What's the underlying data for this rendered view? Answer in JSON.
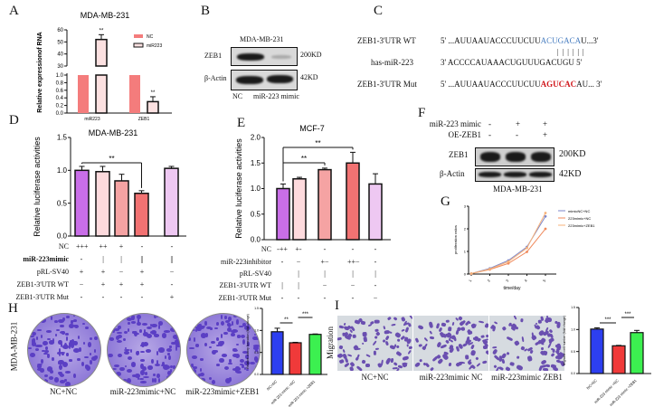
{
  "panels": {
    "A": "A",
    "B": "B",
    "C": "C",
    "D": "D",
    "E": "E",
    "F": "F",
    "G": "G",
    "H": "H",
    "I": "I"
  },
  "blot_b": {
    "title": "MDA-MB-231",
    "rows": [
      "ZEB1",
      "β-Actin"
    ],
    "sizes": [
      "200KD",
      "42KD"
    ],
    "lanes": [
      "NC",
      "miR-223 mimic"
    ]
  },
  "seq_c": {
    "rows": [
      {
        "name": "ZEB1-3'UTR WT",
        "end5": "5'",
        "pre": "...AUUAAUACCCUUCUU",
        "hl": "ACUGACA",
        "post": "U...3'",
        "hl_color": "#4a7fc1",
        "bold": false
      },
      {
        "name": "has-miR-223",
        "end5": "3'",
        "pre": "ACCCCAUAAACUGUUUGACUGU",
        "hl": "",
        "post": "5'",
        "hl_color": "#111111",
        "bold": false
      },
      {
        "name": "ZEB1-3'UTR Mut",
        "end5": "5'",
        "pre": "...AUUAAUACCCUUCUU",
        "hl": "AGUCAC",
        "post": "AU... 3'",
        "hl_color": "#d0161b",
        "bold": true
      }
    ],
    "pairing": "| |  | |   | |"
  },
  "blot_f": {
    "conditions": [
      {
        "label": "miR-223 mimic",
        "values": [
          "-",
          "+",
          "+"
        ]
      },
      {
        "label": "OE-ZEB1",
        "values": [
          "-",
          "-",
          "+"
        ]
      }
    ],
    "rows": [
      "ZEB1",
      "β-Actin"
    ],
    "sizes": [
      "200KD",
      "42KD"
    ],
    "caption": "MDA-MB-231"
  },
  "table_d": [
    {
      "label": "NC",
      "values": [
        "+++",
        "++",
        "+",
        "-",
        "-"
      ]
    },
    {
      "label": "miR-223mimic",
      "values": [
        "-",
        "|",
        "|",
        "||",
        "||"
      ]
    },
    {
      "label": "pRL-SV40",
      "values": [
        "+",
        "+",
        "−",
        "+",
        "−"
      ]
    },
    {
      "label": "ZEB1-3'UTR WT",
      "values": [
        "−",
        "+",
        "+",
        "+",
        "-"
      ]
    },
    {
      "label": "ZEB1-3'UTR Mut",
      "values": [
        "-",
        "-",
        "-",
        "-",
        "+"
      ]
    }
  ],
  "table_e": [
    {
      "label": "NC",
      "values": [
        "-++",
        "+-",
        "-",
        "-",
        "-"
      ]
    },
    {
      "label": "miR-223inhibitor",
      "values": [
        "-",
        "−",
        "+−",
        "++−",
        "-"
      ]
    },
    {
      "label": "pRL-SV40",
      "values": [
        "",
        "|",
        "|",
        "|",
        "|"
      ]
    },
    {
      "label": "ZEB1-3'UTR WT",
      "values": [
        "|",
        "|",
        "−",
        "−",
        "-"
      ]
    },
    {
      "label": "ZEB1-3'UTR Mut",
      "values": [
        "-",
        "-",
        "-",
        "-",
        "−"
      ]
    }
  ],
  "images_h": {
    "row_label": "MDA-MB-231",
    "captions": [
      "NC+NC",
      "miR-223mimic+NC",
      "miR-223mimic+ZEB1"
    ],
    "stain": "#5b3fc4"
  },
  "images_i": {
    "row_label": "Migration",
    "captions": [
      "NC+NC",
      "miR-223mimic  NC",
      "miR-223mimic  ZEB1"
    ],
    "stain": "#6a4fb0"
  },
  "chart_data": [
    {
      "id": "A",
      "type": "bar",
      "title": "MDA-MB-231",
      "ylabel": "Relative expressionof RNA",
      "xlabel": "",
      "categories": [
        "miR223",
        "ZEB1"
      ],
      "series": [
        {
          "name": "NC",
          "values": [
            1.0,
            1.0
          ],
          "color": "#f47c7c"
        },
        {
          "name": "miR223",
          "values": [
            52,
            0.3
          ],
          "errors": [
            4,
            0.13
          ],
          "color": "#fce1e1"
        }
      ],
      "y_axis_break": {
        "lower": [
          0,
          1.0
        ],
        "upper": [
          30,
          60
        ]
      },
      "lower_ticks": [
        "0.0",
        "0.2",
        "0.4",
        "0.6",
        "0.8",
        "1.0"
      ],
      "upper_ticks": [
        "30",
        "40",
        "50",
        "60"
      ],
      "annotations": [
        "**",
        "**"
      ],
      "legend": "top-right"
    },
    {
      "id": "D",
      "type": "bar",
      "title": "MDA-MB-231",
      "ylabel": "Relative luciferase activities",
      "ylim": [
        0,
        1.5
      ],
      "yticks": [
        "0.0",
        "0.5",
        "1.0",
        "1.5"
      ],
      "values": [
        1.0,
        0.98,
        0.84,
        0.65,
        1.03
      ],
      "errors": [
        0.06,
        0.08,
        0.1,
        0.04,
        0.03
      ],
      "colors": [
        "#c96ee8",
        "#fddadd",
        "#f5a3a3",
        "#f27272",
        "#eec8f2"
      ],
      "significance": [
        {
          "from": 1,
          "to": 4,
          "label": "**"
        }
      ]
    },
    {
      "id": "E",
      "type": "bar",
      "title": "MCF-7",
      "ylabel": "Relative luciferase activities",
      "ylim": [
        0,
        2.0
      ],
      "yticks": [
        "0.0",
        "0.5",
        "1.0",
        "1.5",
        "2.0"
      ],
      "values": [
        1.0,
        1.19,
        1.37,
        1.5,
        1.09
      ],
      "errors": [
        0.09,
        0.03,
        0.03,
        0.21,
        0.2
      ],
      "colors": [
        "#c96ee8",
        "#fddadd",
        "#f5a3a3",
        "#f27272",
        "#eec8f2"
      ],
      "significance": [
        {
          "from": 1,
          "to": 3,
          "label": "**"
        },
        {
          "from": 1,
          "to": 4,
          "label": "**"
        }
      ]
    },
    {
      "id": "G",
      "type": "line",
      "ylabel": "proliferation ratios",
      "xlabel": "time/day",
      "x": [
        1,
        2,
        3,
        4,
        5
      ],
      "ylim": [
        0,
        3
      ],
      "yticks": [
        "0",
        "1",
        "2",
        "3"
      ],
      "series": [
        {
          "name": "mimicNC+NC",
          "values": [
            0.02,
            0.25,
            0.6,
            1.2,
            2.55
          ],
          "color": "#7d86c8"
        },
        {
          "name": "223mimic+NC",
          "values": [
            0.02,
            0.2,
            0.47,
            0.98,
            2.0
          ],
          "color": "#f08a5d"
        },
        {
          "name": "223mimic+ZEB1",
          "values": [
            0.02,
            0.22,
            0.55,
            1.15,
            2.7
          ],
          "color": "#f7b27a"
        }
      ],
      "legend": "top-right"
    },
    {
      "id": "H",
      "type": "bar",
      "ylabel": "Relative colony formation (fold change)",
      "ylim": [
        0,
        1.5
      ],
      "yticks": [
        "0.0",
        "0.5",
        "1.0",
        "1.5"
      ],
      "categories": [
        "NC+NC",
        "miR-223 mimic +NC",
        "miR-223 mimic +ZEB1"
      ],
      "values": [
        0.97,
        0.72,
        0.91
      ],
      "errors": [
        0.08,
        0.01,
        0.01
      ],
      "colors": [
        "#2d3ff0",
        "#f03a3a",
        "#3cf050"
      ],
      "significance": [
        {
          "from": 1,
          "to": 2,
          "label": "**"
        },
        {
          "from": 2,
          "to": 3,
          "label": "***"
        }
      ]
    },
    {
      "id": "I",
      "type": "bar",
      "ylabel": "Migration cell number (fold change)",
      "ylim": [
        0,
        1.5
      ],
      "yticks": [
        "0.0",
        "0.5",
        "1.0",
        "1.5"
      ],
      "categories": [
        "NC+NC",
        "miR-223 mimic +NC",
        "miR-223 mimic +ZEB1"
      ],
      "values": [
        1.01,
        0.63,
        0.93
      ],
      "errors": [
        0.03,
        0.01,
        0.05
      ],
      "colors": [
        "#2d3ff0",
        "#f03a3a",
        "#3cf050"
      ],
      "significance": [
        {
          "from": 1,
          "to": 2,
          "label": "***"
        },
        {
          "from": 2,
          "to": 3,
          "label": "***"
        }
      ]
    }
  ]
}
